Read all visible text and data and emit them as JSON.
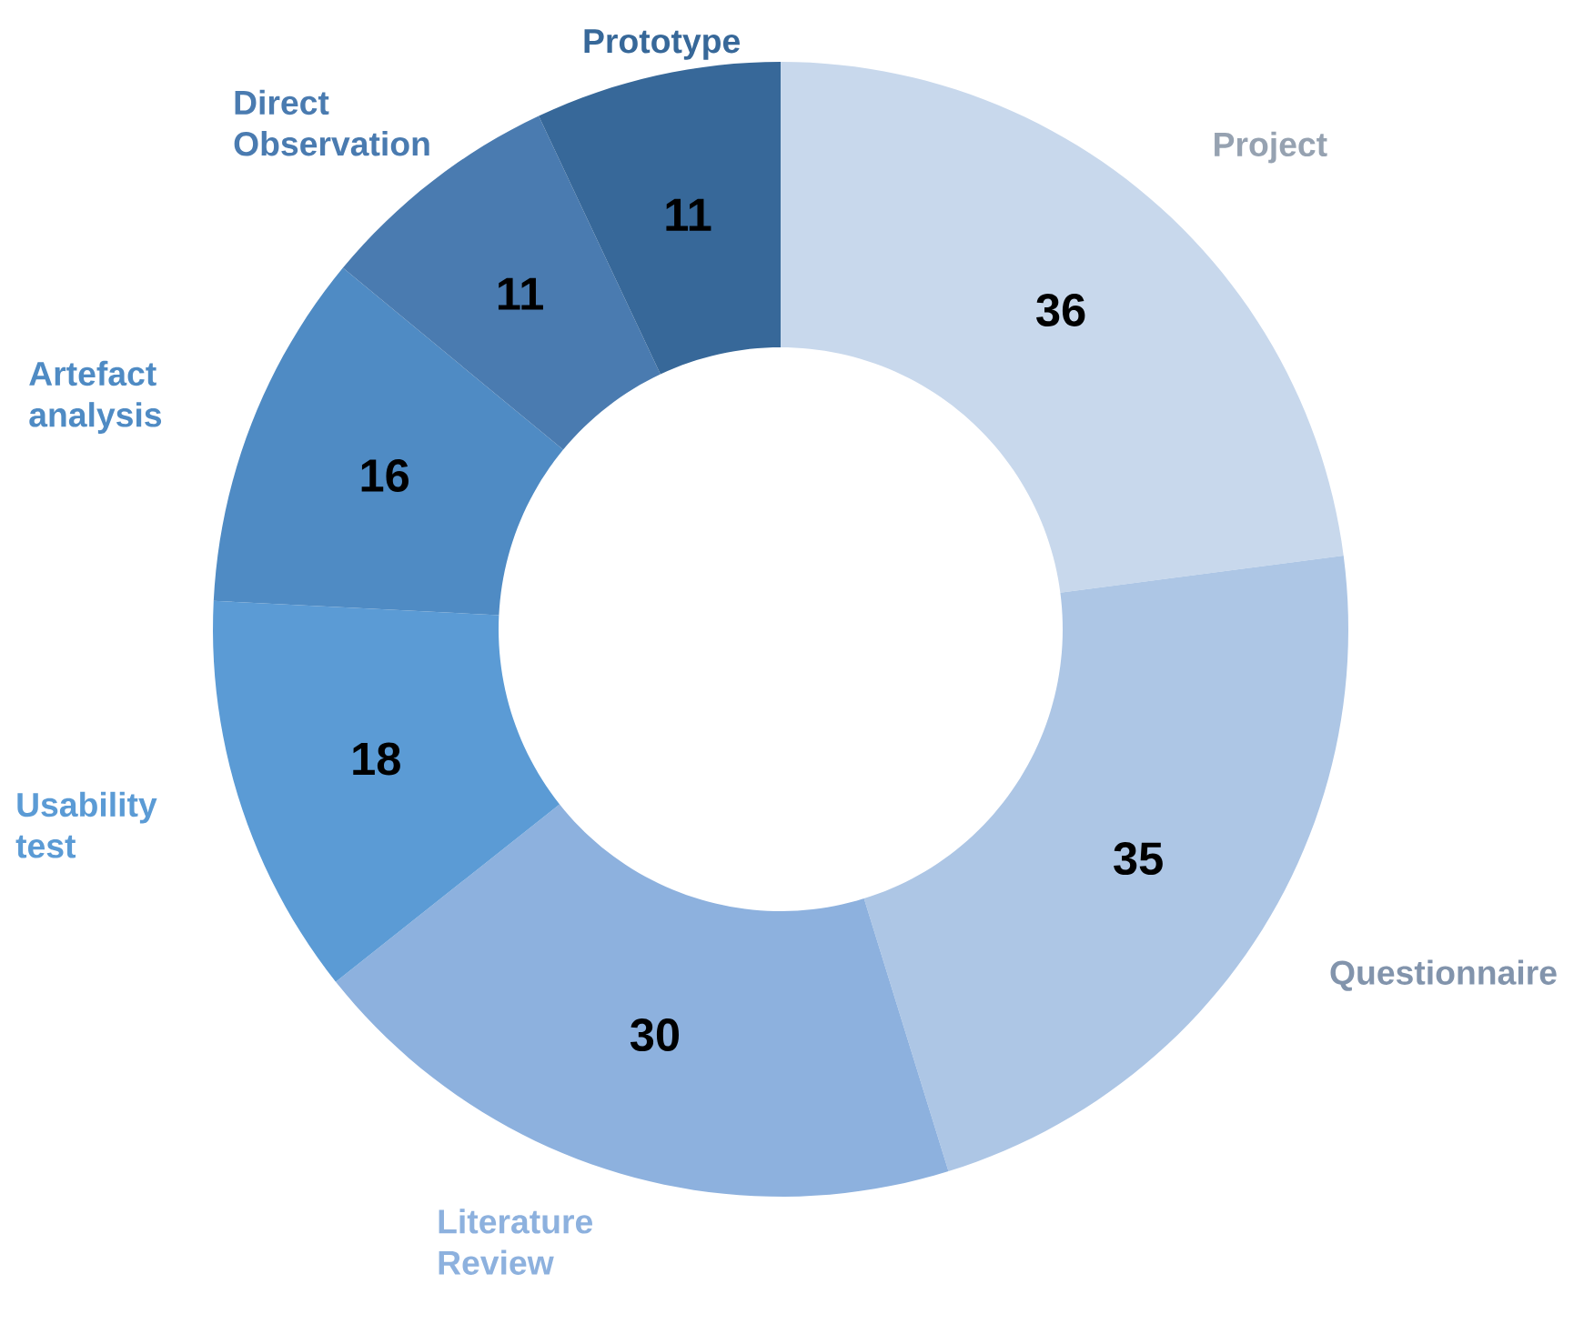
{
  "chart_data": {
    "type": "donut",
    "categories": [
      "Project",
      "Questionnaire",
      "Literature Review",
      "Usability test",
      "Artefact analysis",
      "Direct Observation",
      "Prototype"
    ],
    "values": [
      36,
      35,
      30,
      18,
      16,
      11,
      11
    ],
    "colors": [
      "#c8d8ec",
      "#adc6e5",
      "#8db1de",
      "#5b9bd5",
      "#4f8bc4",
      "#4a7bb0",
      "#376899"
    ],
    "data_labels": true
  }
}
